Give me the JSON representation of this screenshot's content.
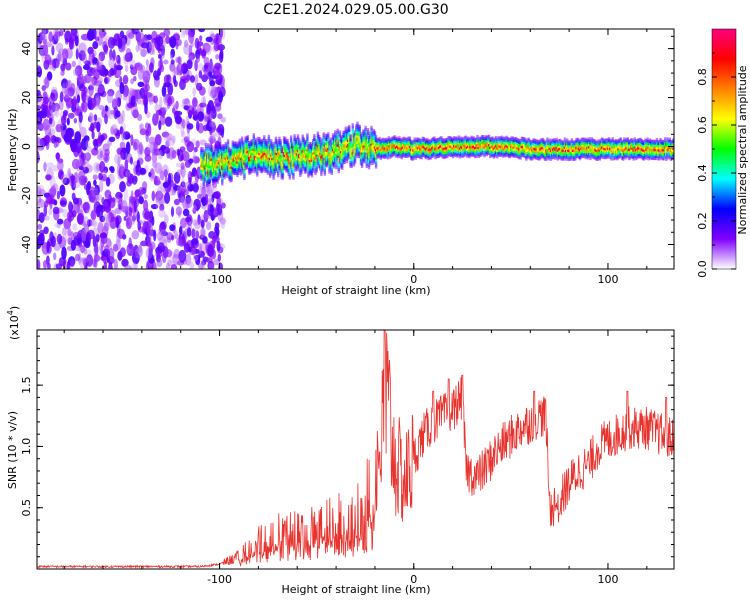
{
  "title": "C2E1.2024.029.05.00.G30",
  "chart_data": [
    {
      "type": "heatmap",
      "xlabel": "Height of straight line (km)",
      "ylabel": "Frequency (Hz)",
      "xlim": [
        -194,
        134
      ],
      "ylim": [
        -50,
        48
      ],
      "xticks": [
        -100,
        0,
        100
      ],
      "yticks": [
        -40,
        -20,
        0,
        20,
        40
      ],
      "noise_region_x": [
        -194,
        -98
      ],
      "signal_track": [
        {
          "x": -110,
          "y": -8
        },
        {
          "x": -100,
          "y": -7
        },
        {
          "x": -90,
          "y": -5
        },
        {
          "x": -80,
          "y": -3
        },
        {
          "x": -70,
          "y": -5
        },
        {
          "x": -60,
          "y": -4
        },
        {
          "x": -50,
          "y": -3
        },
        {
          "x": -40,
          "y": -2
        },
        {
          "x": -30,
          "y": 1
        },
        {
          "x": -20,
          "y": -1
        },
        {
          "x": -10,
          "y": 0
        },
        {
          "x": 0,
          "y": -1
        },
        {
          "x": 20,
          "y": 0
        },
        {
          "x": 40,
          "y": 0
        },
        {
          "x": 60,
          "y": -1
        },
        {
          "x": 80,
          "y": -1
        },
        {
          "x": 100,
          "y": -1
        },
        {
          "x": 120,
          "y": -1
        },
        {
          "x": 134,
          "y": -1
        }
      ],
      "colorbar": {
        "label": "Normalized spectral amplitude",
        "range": [
          0,
          1
        ],
        "ticks": [
          0.0,
          0.2,
          0.4,
          0.6,
          0.8
        ],
        "tick_labels": [
          "0.0",
          "0.2",
          "0.4",
          "0.6",
          "0.8"
        ],
        "colormap": [
          "#ffffff",
          "#8000ff",
          "#0000ff",
          "#00ffff",
          "#00ff00",
          "#ffff00",
          "#ff8000",
          "#ff0000",
          "#ff0080"
        ]
      }
    },
    {
      "type": "line",
      "xlabel": "Height of straight line (km)",
      "ylabel": "SNR (10 * v/v)",
      "scale_label": "(x10",
      "scale_exponent": "4",
      "scale_close": ")",
      "xlim": [
        -194,
        134
      ],
      "ylim": [
        0,
        1.95
      ],
      "xticks": [
        -100,
        0,
        100
      ],
      "yticks": [
        0.5,
        1.0,
        1.5
      ],
      "ytick_labels": [
        "0.5",
        "1.0",
        "1.5"
      ],
      "color": "#e8322d",
      "envelope": [
        {
          "x": -194,
          "y": 0.02
        },
        {
          "x": -110,
          "y": 0.02
        },
        {
          "x": -100,
          "y": 0.04
        },
        {
          "x": -90,
          "y": 0.1
        },
        {
          "x": -80,
          "y": 0.25
        },
        {
          "x": -70,
          "y": 0.3
        },
        {
          "x": -60,
          "y": 0.32
        },
        {
          "x": -50,
          "y": 0.35
        },
        {
          "x": -40,
          "y": 0.4
        },
        {
          "x": -30,
          "y": 0.42
        },
        {
          "x": -25,
          "y": 0.55
        },
        {
          "x": -20,
          "y": 0.8
        },
        {
          "x": -16,
          "y": 1.1
        },
        {
          "x": -14,
          "y": 1.4
        },
        {
          "x": -10,
          "y": 0.9
        },
        {
          "x": -5,
          "y": 0.7
        },
        {
          "x": 0,
          "y": 0.9
        },
        {
          "x": 5,
          "y": 1.1
        },
        {
          "x": 10,
          "y": 1.2
        },
        {
          "x": 15,
          "y": 1.25
        },
        {
          "x": 20,
          "y": 1.3
        },
        {
          "x": 25,
          "y": 1.4
        },
        {
          "x": 27,
          "y": 0.8
        },
        {
          "x": 33,
          "y": 0.75
        },
        {
          "x": 38,
          "y": 0.85
        },
        {
          "x": 42,
          "y": 0.95
        },
        {
          "x": 48,
          "y": 1.05
        },
        {
          "x": 55,
          "y": 1.15
        },
        {
          "x": 60,
          "y": 1.2
        },
        {
          "x": 65,
          "y": 1.25
        },
        {
          "x": 68,
          "y": 1.25
        },
        {
          "x": 70,
          "y": 0.5
        },
        {
          "x": 75,
          "y": 0.55
        },
        {
          "x": 80,
          "y": 0.7
        },
        {
          "x": 85,
          "y": 0.8
        },
        {
          "x": 90,
          "y": 0.85
        },
        {
          "x": 95,
          "y": 1.0
        },
        {
          "x": 100,
          "y": 1.05
        },
        {
          "x": 110,
          "y": 1.15
        },
        {
          "x": 120,
          "y": 1.15
        },
        {
          "x": 134,
          "y": 1.05
        }
      ],
      "spikes": [
        {
          "x": -15,
          "y": 1.95
        },
        {
          "x": 10,
          "y": 1.45
        },
        {
          "x": 18,
          "y": 1.55
        },
        {
          "x": 25,
          "y": 1.58
        },
        {
          "x": 62,
          "y": 1.45
        },
        {
          "x": 75,
          "y": 0.45
        },
        {
          "x": 110,
          "y": 1.45
        },
        {
          "x": 130,
          "y": 1.4
        }
      ]
    }
  ]
}
